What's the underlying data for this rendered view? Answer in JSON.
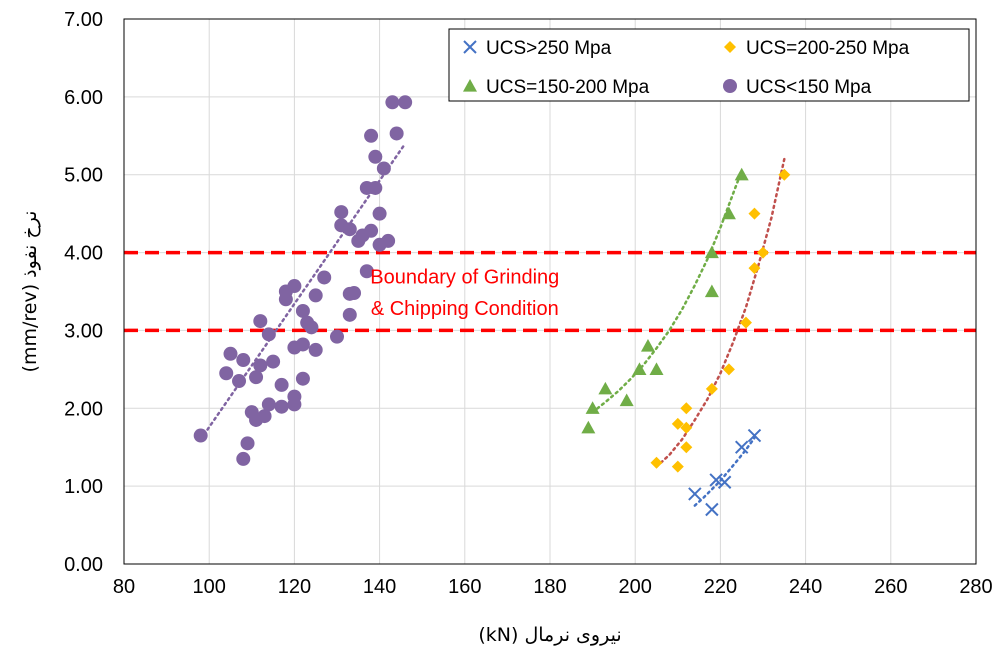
{
  "chart_data": {
    "type": "scatter",
    "xlabel": "نیروی نرمال (kN)",
    "ylabel": "نرخ نفوذ  (mm/rev)",
    "xlim": [
      80,
      280
    ],
    "ylim": [
      0,
      7
    ],
    "x_ticks": [
      "80",
      "100",
      "120",
      "140",
      "160",
      "180",
      "200",
      "220",
      "240",
      "260",
      "280"
    ],
    "y_ticks": [
      "0.00",
      "1.00",
      "2.00",
      "3.00",
      "4.00",
      "5.00",
      "6.00",
      "7.00"
    ],
    "grid": true,
    "legend_position": "top-right",
    "series": [
      {
        "name": "UCS>250 Mpa",
        "marker": "x",
        "color": "#4472C4",
        "points": [
          [
            214,
            0.9
          ],
          [
            218,
            0.7
          ],
          [
            219,
            1.08
          ],
          [
            221,
            1.05
          ],
          [
            225,
            1.5
          ],
          [
            228,
            1.65
          ]
        ],
        "trendline": [
          [
            214,
            0.75
          ],
          [
            216,
            0.85
          ],
          [
            218,
            0.96
          ],
          [
            220,
            1.07
          ],
          [
            222,
            1.2
          ],
          [
            224,
            1.33
          ],
          [
            226,
            1.47
          ],
          [
            228,
            1.62
          ]
        ]
      },
      {
        "name": "UCS=200-250 Mpa",
        "marker": "diamond",
        "color": "#FFC000",
        "points": [
          [
            205,
            1.3
          ],
          [
            210,
            1.25
          ],
          [
            210,
            1.8
          ],
          [
            212,
            2.0
          ],
          [
            212,
            1.5
          ],
          [
            212,
            1.75
          ],
          [
            218,
            2.25
          ],
          [
            222,
            2.5
          ],
          [
            226,
            3.1
          ],
          [
            228,
            4.5
          ],
          [
            228,
            3.8
          ],
          [
            230,
            4.0
          ],
          [
            235,
            5.0
          ]
        ],
        "trendline": [
          [
            205,
            1.25
          ],
          [
            208,
            1.4
          ],
          [
            211,
            1.6
          ],
          [
            214,
            1.85
          ],
          [
            217,
            2.12
          ],
          [
            220,
            2.45
          ],
          [
            223,
            2.85
          ],
          [
            226,
            3.3
          ],
          [
            229,
            3.85
          ],
          [
            232,
            4.45
          ],
          [
            235,
            5.2
          ]
        ]
      },
      {
        "name": "UCS=150-200 Mpa",
        "marker": "triangle",
        "color": "#70AD47",
        "points": [
          [
            189,
            1.75
          ],
          [
            190,
            2.0
          ],
          [
            193,
            2.25
          ],
          [
            198,
            2.1
          ],
          [
            201,
            2.5
          ],
          [
            203,
            2.8
          ],
          [
            205,
            2.5
          ],
          [
            218,
            4.0
          ],
          [
            218,
            3.5
          ],
          [
            222,
            4.5
          ],
          [
            225,
            5.0
          ]
        ],
        "trendline": [
          [
            190,
            1.95
          ],
          [
            193,
            2.08
          ],
          [
            196,
            2.22
          ],
          [
            199,
            2.38
          ],
          [
            202,
            2.56
          ],
          [
            205,
            2.77
          ],
          [
            208,
            3.0
          ],
          [
            211,
            3.27
          ],
          [
            214,
            3.58
          ],
          [
            217,
            3.92
          ],
          [
            220,
            4.32
          ],
          [
            223,
            4.76
          ],
          [
            225,
            5.05
          ]
        ]
      },
      {
        "name": "UCS<150 Mpa",
        "marker": "circle",
        "color": "#8064A2",
        "points": [
          [
            98,
            1.65
          ],
          [
            104,
            2.45
          ],
          [
            105,
            2.7
          ],
          [
            107,
            2.35
          ],
          [
            108,
            1.35
          ],
          [
            108,
            2.62
          ],
          [
            109,
            1.55
          ],
          [
            110,
            1.95
          ],
          [
            111,
            1.85
          ],
          [
            111,
            2.4
          ],
          [
            112,
            3.12
          ],
          [
            112,
            2.55
          ],
          [
            113,
            1.9
          ],
          [
            114,
            2.95
          ],
          [
            114,
            2.05
          ],
          [
            115,
            2.6
          ],
          [
            117,
            2.3
          ],
          [
            117,
            2.02
          ],
          [
            118,
            3.5
          ],
          [
            118,
            3.4
          ],
          [
            120,
            3.57
          ],
          [
            120,
            2.78
          ],
          [
            120,
            2.15
          ],
          [
            120,
            2.05
          ],
          [
            122,
            3.25
          ],
          [
            122,
            2.38
          ],
          [
            122,
            2.82
          ],
          [
            123,
            3.1
          ],
          [
            124,
            3.04
          ],
          [
            125,
            3.45
          ],
          [
            125,
            2.75
          ],
          [
            127,
            3.68
          ],
          [
            130,
            2.92
          ],
          [
            131,
            4.52
          ],
          [
            131,
            4.35
          ],
          [
            133,
            4.3
          ],
          [
            133,
            3.47
          ],
          [
            133,
            3.2
          ],
          [
            134,
            3.48
          ],
          [
            135,
            4.15
          ],
          [
            136,
            4.22
          ],
          [
            137,
            4.83
          ],
          [
            137,
            3.76
          ],
          [
            138,
            5.5
          ],
          [
            138,
            4.28
          ],
          [
            139,
            5.23
          ],
          [
            139,
            4.83
          ],
          [
            140,
            4.5
          ],
          [
            140,
            4.1
          ],
          [
            141,
            5.08
          ],
          [
            142,
            4.15
          ],
          [
            143,
            5.93
          ],
          [
            144,
            5.53
          ],
          [
            146,
            5.93
          ]
        ],
        "trendline": [
          [
            98,
            1.6
          ],
          [
            146,
            5.4
          ]
        ]
      }
    ],
    "reference_lines": [
      {
        "y": 4.0,
        "color": "#FF0000",
        "style": "dashed"
      },
      {
        "y": 3.0,
        "color": "#FF0000",
        "style": "dashed"
      }
    ],
    "annotation": {
      "lines": [
        "Boundary of Grinding",
        "& Chipping Condition"
      ],
      "color": "#FF0000"
    }
  }
}
